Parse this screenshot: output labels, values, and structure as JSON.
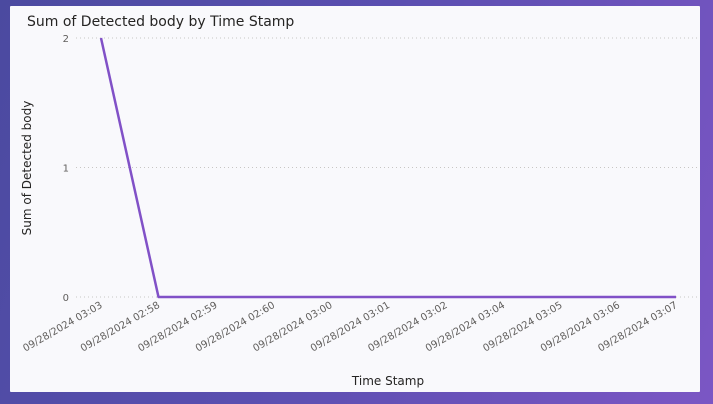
{
  "chart_data": {
    "type": "line",
    "title": "Sum of Detected body by Time Stamp",
    "xlabel": "Time Stamp",
    "ylabel": "Sum of Detected body",
    "categories": [
      "09/28/2024 03:03",
      "09/28/2024 02:58",
      "09/28/2024 02:59",
      "09/28/2024 02:60",
      "09/28/2024 03:00",
      "09/28/2024 03:01",
      "09/28/2024 03:02",
      "09/28/2024 03:04",
      "09/28/2024 03:05",
      "09/28/2024 03:06",
      "09/28/2024 03:07"
    ],
    "series": [
      {
        "values": [
          2,
          0,
          0,
          0,
          0,
          0,
          0,
          0,
          0,
          0,
          0
        ]
      }
    ],
    "ylim": [
      0,
      2
    ],
    "yticks": [
      "0",
      "1",
      "2"
    ],
    "grid": true,
    "line_color": "#8151c7"
  }
}
